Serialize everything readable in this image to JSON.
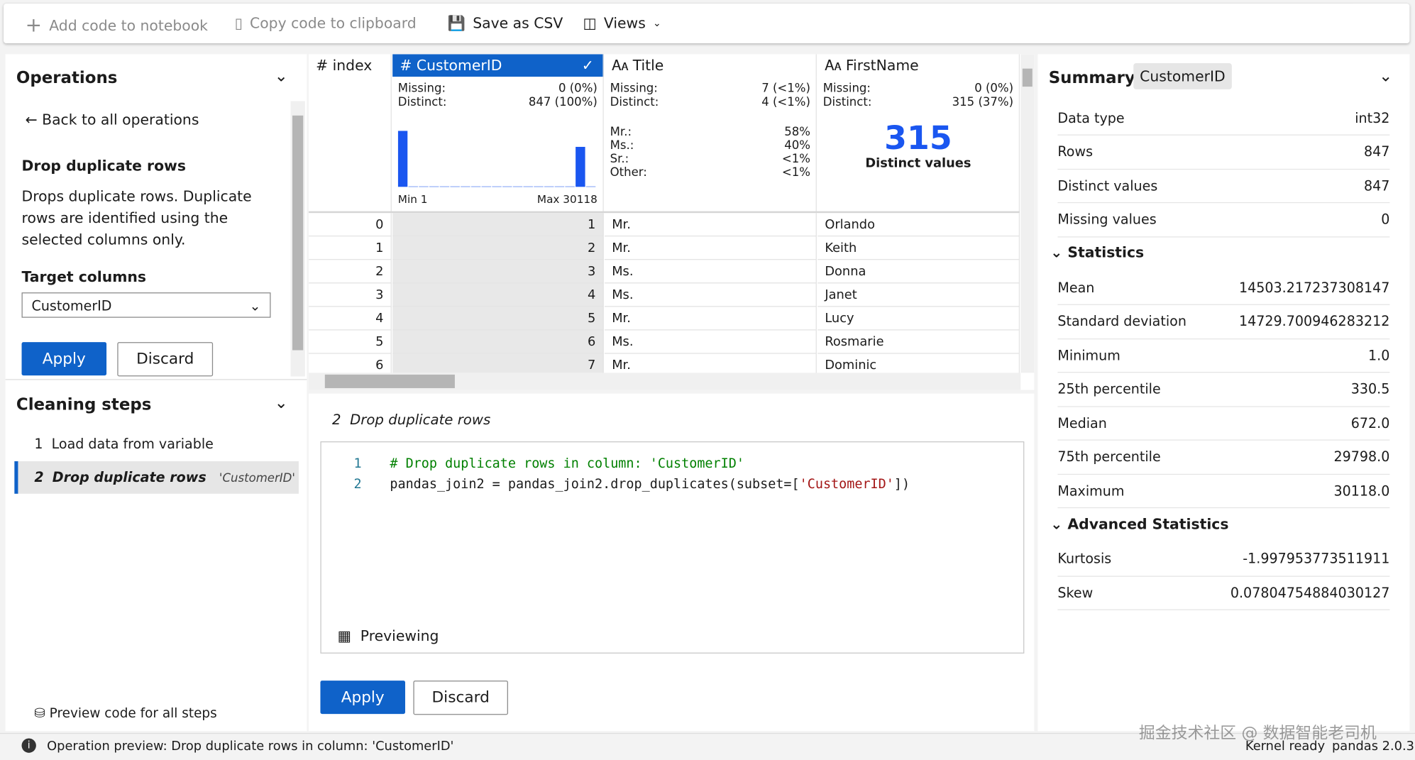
{
  "toolbar": {
    "add_code": "Add code to notebook",
    "copy_code": "Copy code to clipboard",
    "save_csv": "Save as CSV",
    "views": "Views"
  },
  "operations": {
    "title": "Operations",
    "back": "Back to all operations",
    "operation_title": "Drop duplicate rows",
    "description": "Drops duplicate rows. Duplicate rows are identified using the selected columns only.",
    "target_label": "Target columns",
    "target_value": "CustomerID",
    "apply": "Apply",
    "discard": "Discard"
  },
  "cleaning_steps": {
    "title": "Cleaning steps",
    "steps": [
      {
        "number": "1",
        "label": "Load data from variable"
      },
      {
        "number": "2",
        "label": "Drop duplicate rows",
        "detail": "'CustomerID'"
      }
    ],
    "preview_all": "Preview code for all steps"
  },
  "grid": {
    "columns": [
      {
        "name": "index"
      },
      {
        "name": "CustomerID",
        "missing_label": "Missing:",
        "missing": "0 (0%)",
        "distinct_label": "Distinct:",
        "distinct": "847 (100%)",
        "histogram": {
          "counts": [
            420,
            3,
            3,
            3,
            3,
            3,
            3,
            3,
            3,
            3,
            3,
            3,
            3,
            3,
            3,
            3,
            3,
            300,
            3
          ],
          "min": "Min 1",
          "max": "Max 30118"
        }
      },
      {
        "name": "Title",
        "missing_label": "Missing:",
        "missing": "7 (<1%)",
        "distinct_label": "Distinct:",
        "distinct": "4 (<1%)",
        "shares": [
          {
            "label": "Mr.:",
            "value": "58%"
          },
          {
            "label": "Ms.:",
            "value": "40%"
          },
          {
            "label": "Sr.:",
            "value": "<1%"
          },
          {
            "label": "Other:",
            "value": "<1%"
          }
        ]
      },
      {
        "name": "FirstName",
        "missing_label": "Missing:",
        "missing": "0 (0%)",
        "distinct_label": "Distinct:",
        "distinct": "315 (37%)",
        "distinct_count": 315,
        "distinct_caption": "Distinct values"
      }
    ],
    "rows": [
      [
        0,
        1,
        "Mr.",
        "Orlando"
      ],
      [
        1,
        2,
        "Mr.",
        "Keith"
      ],
      [
        2,
        3,
        "Ms.",
        "Donna"
      ],
      [
        3,
        4,
        "Ms.",
        "Janet"
      ],
      [
        4,
        5,
        "Mr.",
        "Lucy"
      ],
      [
        5,
        6,
        "Ms.",
        "Rosmarie"
      ],
      [
        6,
        7,
        "Mr.",
        "Dominic"
      ]
    ]
  },
  "code": {
    "step_number": "2",
    "step_label": "Drop duplicate rows",
    "lines": [
      {
        "number": "1",
        "tokens": [
          "# Drop duplicate rows in column: 'CustomerID'"
        ]
      },
      {
        "number": "2",
        "tokens": [
          "pandas_join2 = pandas_join2.drop_duplicates(subset=[",
          "'CustomerID'",
          "])"
        ]
      }
    ],
    "previewing": "Previewing",
    "apply": "Apply",
    "discard": "Discard"
  },
  "summary": {
    "title": "Summary",
    "column": "CustomerID",
    "rows": [
      [
        "Data type",
        "int32"
      ],
      [
        "Rows",
        "847"
      ],
      [
        "Distinct values",
        "847"
      ],
      [
        "Missing values",
        "0"
      ]
    ],
    "statistics_title": "Statistics",
    "statistics": [
      [
        "Mean",
        "14503.217237308147"
      ],
      [
        "Standard deviation",
        "14729.700946283212"
      ],
      [
        "Minimum",
        "1.0"
      ],
      [
        "25th percentile",
        "330.5"
      ],
      [
        "Median",
        "672.0"
      ],
      [
        "75th percentile",
        "29798.0"
      ],
      [
        "Maximum",
        "30118.0"
      ]
    ],
    "advanced_title": "Advanced Statistics",
    "advanced": [
      [
        "Kurtosis",
        "-1.997953773511911"
      ],
      [
        "Skew",
        "0.07804754884030127"
      ]
    ]
  },
  "status": {
    "message": "Operation preview: Drop duplicate rows in column: 'CustomerID'",
    "kernel": "Kernel ready",
    "version": "pandas 2.0.3",
    "watermark": "掘金技术社区 @ 数据智能老司机"
  }
}
